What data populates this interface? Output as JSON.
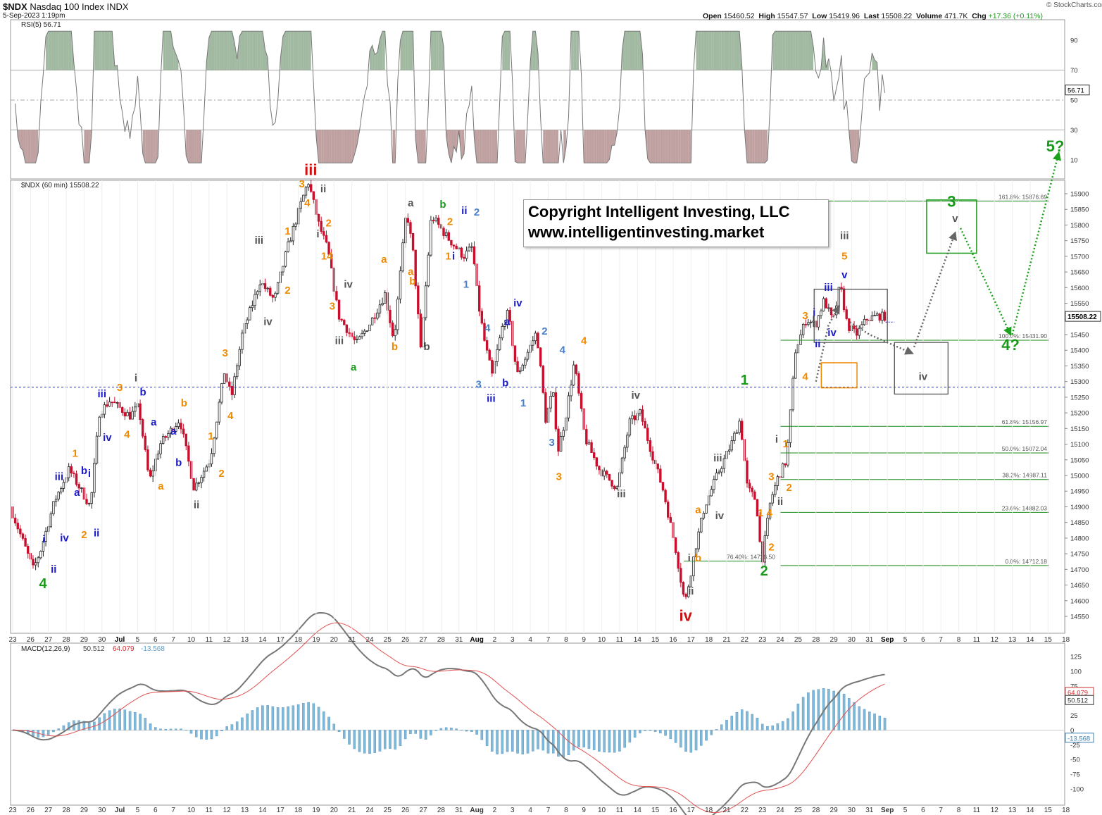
{
  "header": {
    "symbol": "$NDX",
    "name": "Nasdaq 100 Index",
    "exchange": "INDX",
    "datetime": "5-Sep-2023 1:19pm",
    "watermark": "© StockCharts.com",
    "open_label": "Open",
    "open": "15460.52",
    "high_label": "High",
    "high": "15547.57",
    "low_label": "Low",
    "low": "15419.96",
    "last_label": "Last",
    "last": "15508.22",
    "volume_label": "Volume",
    "volume": "471.7K",
    "chg_label": "Chg",
    "chg": "+17.36 (+0.11%)",
    "chg_color": "#1a9a1a"
  },
  "copyright": {
    "line1": "Copyright Intelligent Investing, LLC",
    "line2": "www.intelligentinvesting.market"
  },
  "chart_data": [
    {
      "type": "line",
      "panel": "RSI",
      "legend": "RSI(5) 56.71",
      "last_value": "56.71",
      "ylim": [
        0,
        100
      ],
      "yticks": [
        "90",
        "70",
        "50",
        "30",
        "10"
      ],
      "overbought": 70,
      "oversold": 30
    },
    {
      "type": "candlestick",
      "panel": "price",
      "legend": "$NDX (60 min) 15508.22",
      "last_value": "15508.22",
      "ylim": [
        14530,
        15960
      ],
      "yticks": [
        "15900",
        "15850",
        "15800",
        "15750",
        "15700",
        "15650",
        "15600",
        "15550",
        "15500",
        "15450",
        "15400",
        "15350",
        "15300",
        "15250",
        "15200",
        "15150",
        "15100",
        "15050",
        "15000",
        "14950",
        "14900",
        "14850",
        "14800",
        "14750",
        "14700",
        "14650",
        "14600",
        "14550"
      ],
      "x_dates": [
        "23",
        "26",
        "27",
        "28",
        "29",
        "30",
        "Jul",
        "5",
        "6",
        "7",
        "10",
        "11",
        "12",
        "13",
        "14",
        "17",
        "18",
        "19",
        "20",
        "21",
        "24",
        "25",
        "26",
        "27",
        "28",
        "31",
        "Aug",
        "2",
        "3",
        "4",
        "7",
        "8",
        "9",
        "10",
        "11",
        "14",
        "15",
        "16",
        "17",
        "18",
        "21",
        "22",
        "23",
        "24",
        "25",
        "28",
        "29",
        "30",
        "31",
        "Sep",
        "5",
        "6",
        "7",
        "8",
        "11",
        "12",
        "13",
        "14",
        "15",
        "18"
      ],
      "key_points": [
        {
          "date": "Jun 27",
          "value": 14700,
          "label": "4"
        },
        {
          "date": "Jul 19",
          "value": 15940,
          "label": "iii"
        },
        {
          "date": "Aug 18",
          "value": 14560,
          "label": "iv"
        },
        {
          "date": "Aug 24",
          "value": 15280,
          "label": "1"
        },
        {
          "date": "Aug 25",
          "value": 14712,
          "label": "2"
        },
        {
          "date": "Aug 31",
          "value": 15560,
          "label": "iii"
        },
        {
          "date": "Sep 5",
          "value": 15508.22,
          "label": "last"
        }
      ],
      "reference_level": 15282,
      "fib_levels": [
        {
          "label": "161.8%: 15876.69",
          "value": 15876.69
        },
        {
          "label": "100.0%: 15431.90",
          "value": 15431.9
        },
        {
          "label": "61.8%: 15156.97",
          "value": 15156.97
        },
        {
          "label": "50.0%: 15072.04",
          "value": 15072.04
        },
        {
          "label": "38.2%: 14987.11",
          "value": 14987.11
        },
        {
          "label": "23.6%: 14882.03",
          "value": 14882.03
        },
        {
          "label": "0.0%: 14712.18",
          "value": 14712.18
        },
        {
          "label": "76.40%: 14726.50",
          "value": 14726.5
        }
      ],
      "projection": [
        {
          "label": "iv",
          "date": "Sep 7",
          "value": 15390
        },
        {
          "label": "v",
          "date": "Sep 11",
          "value": 15770
        },
        {
          "label": "3",
          "date": "Sep 11",
          "value": 15790
        },
        {
          "label": "4?",
          "date": "Sep 14",
          "value": 15460
        },
        {
          "label": "5?",
          "date": "Sep 15",
          "value": 16050
        }
      ]
    },
    {
      "type": "line",
      "panel": "MACD",
      "legend": {
        "name": "MACD(12,26,9)",
        "macd": "50.512",
        "signal": "64.079",
        "hist": "-13.568"
      },
      "ylim": [
        -110,
        140
      ],
      "yticks": [
        "125",
        "100",
        "75",
        "50",
        "25",
        "0",
        "-25",
        "-50",
        "-75",
        "-100"
      ],
      "last_values": {
        "signal": "64.079",
        "macd": "50.512",
        "hist": "-13.568"
      },
      "series": [
        {
          "name": "MACD",
          "color": "#777777"
        },
        {
          "name": "signal",
          "color": "#e05050"
        },
        {
          "name": "histogram",
          "color": "#7fb8d8"
        }
      ]
    }
  ],
  "wave_labels": [
    {
      "t": "4",
      "d": 1.7,
      "v": 14640,
      "c": "green",
      "s": 20
    },
    {
      "t": "i",
      "d": 1.75,
      "v": 14785,
      "c": "blue"
    },
    {
      "t": "ii",
      "d": 2.3,
      "v": 14690,
      "c": "blue"
    },
    {
      "t": "iii",
      "d": 2.6,
      "v": 14985,
      "c": "blue"
    },
    {
      "t": "iv",
      "d": 2.9,
      "v": 14790,
      "c": "blue"
    },
    {
      "t": "a",
      "d": 3.6,
      "v": 14935,
      "c": "blue"
    },
    {
      "t": "1",
      "d": 3.5,
      "v": 15060,
      "c": "orange"
    },
    {
      "t": "b",
      "d": 4.0,
      "v": 15005,
      "c": "blue"
    },
    {
      "t": "i",
      "d": 4.3,
      "v": 14995,
      "c": "blue"
    },
    {
      "t": "2",
      "d": 4.0,
      "v": 14800,
      "c": "orange"
    },
    {
      "t": "ii",
      "d": 4.7,
      "v": 14805,
      "c": "blue"
    },
    {
      "t": "iii",
      "d": 5.0,
      "v": 15250,
      "c": "blue"
    },
    {
      "t": "iv",
      "d": 5.3,
      "v": 15110,
      "c": "blue"
    },
    {
      "t": "3",
      "d": 6.0,
      "v": 15270,
      "c": "orange"
    },
    {
      "t": "4",
      "d": 6.4,
      "v": 15120,
      "c": "orange"
    },
    {
      "t": "i",
      "d": 6.9,
      "v": 15300,
      "c": "gray"
    },
    {
      "t": "b",
      "d": 7.3,
      "v": 15255,
      "c": "blue"
    },
    {
      "t": "a",
      "d": 7.9,
      "v": 15160,
      "c": "blue"
    },
    {
      "t": "a",
      "d": 8.3,
      "v": 14955,
      "c": "orange"
    },
    {
      "t": "b",
      "d": 9.3,
      "v": 15030,
      "c": "blue"
    },
    {
      "t": "a",
      "d": 9.0,
      "v": 15130,
      "c": "blue"
    },
    {
      "t": "b",
      "d": 9.6,
      "v": 15220,
      "c": "orange"
    },
    {
      "t": "ii",
      "d": 10.3,
      "v": 14895,
      "c": "gray"
    },
    {
      "t": "1",
      "d": 11.1,
      "v": 15115,
      "c": "orange"
    },
    {
      "t": "2",
      "d": 11.7,
      "v": 14995,
      "c": "orange"
    },
    {
      "t": "3",
      "d": 11.9,
      "v": 15380,
      "c": "orange"
    },
    {
      "t": "4",
      "d": 12.2,
      "v": 15180,
      "c": "orange"
    },
    {
      "t": "iii",
      "d": 13.8,
      "v": 15740,
      "c": "gray"
    },
    {
      "t": "iv",
      "d": 14.3,
      "v": 15480,
      "c": "gray"
    },
    {
      "t": "1",
      "d": 15.4,
      "v": 15770,
      "c": "orange"
    },
    {
      "t": "2",
      "d": 15.4,
      "v": 15580,
      "c": "orange"
    },
    {
      "t": "3",
      "d": 16.2,
      "v": 15920,
      "c": "orange"
    },
    {
      "t": "4",
      "d": 16.5,
      "v": 15860,
      "c": "orange"
    },
    {
      "t": "iii",
      "d": 16.7,
      "v": 15960,
      "c": "red",
      "s": 22
    },
    {
      "t": "ii",
      "d": 17.4,
      "v": 15905,
      "c": "gray"
    },
    {
      "t": "i",
      "d": 17.1,
      "v": 15760,
      "c": "gray"
    },
    {
      "t": "2",
      "d": 17.7,
      "v": 15795,
      "c": "orange"
    },
    {
      "t": "14",
      "d": 17.6,
      "v": 15690,
      "c": "orange"
    },
    {
      "t": "iv",
      "d": 18.8,
      "v": 15600,
      "c": "gray"
    },
    {
      "t": "3",
      "d": 17.9,
      "v": 15530,
      "c": "orange"
    },
    {
      "t": "iii",
      "d": 18.3,
      "v": 15420,
      "c": "gray"
    },
    {
      "t": "a",
      "d": 19.1,
      "v": 15335,
      "c": "green"
    },
    {
      "t": "a",
      "d": 20.8,
      "v": 15680,
      "c": "orange"
    },
    {
      "t": "b",
      "d": 21.4,
      "v": 15400,
      "c": "orange"
    },
    {
      "t": "a",
      "d": 22.3,
      "v": 15860,
      "c": "gray"
    },
    {
      "t": "b",
      "d": 22.4,
      "v": 15610,
      "c": "orange"
    },
    {
      "t": "a",
      "d": 22.3,
      "v": 15640,
      "c": "orange"
    },
    {
      "t": "b",
      "d": 23.2,
      "v": 15400,
      "c": "gray"
    },
    {
      "t": "b",
      "d": 24.1,
      "v": 15855,
      "c": "green"
    },
    {
      "t": "2",
      "d": 24.5,
      "v": 15800,
      "c": "orange"
    },
    {
      "t": "1",
      "d": 24.4,
      "v": 15690,
      "c": "orange"
    },
    {
      "t": "i",
      "d": 24.7,
      "v": 15690,
      "c": "blue"
    },
    {
      "t": "ii",
      "d": 25.3,
      "v": 15835,
      "c": "blue"
    },
    {
      "t": "1",
      "d": 25.4,
      "v": 15600,
      "c": "steel"
    },
    {
      "t": "2",
      "d": 26.0,
      "v": 15830,
      "c": "steel"
    },
    {
      "t": "iv",
      "d": 28.3,
      "v": 15540,
      "c": "blue"
    },
    {
      "t": "a",
      "d": 27.7,
      "v": 15480,
      "c": "blue"
    },
    {
      "t": "4",
      "d": 26.6,
      "v": 15460,
      "c": "steel"
    },
    {
      "t": "3",
      "d": 26.1,
      "v": 15280,
      "c": "steel"
    },
    {
      "t": "iii",
      "d": 26.8,
      "v": 15235,
      "c": "blue"
    },
    {
      "t": "b",
      "d": 27.6,
      "v": 15285,
      "c": "blue"
    },
    {
      "t": "1",
      "d": 28.6,
      "v": 15220,
      "c": "steel"
    },
    {
      "t": "2",
      "d": 29.8,
      "v": 15450,
      "c": "steel"
    },
    {
      "t": "4",
      "d": 30.8,
      "v": 15390,
      "c": "steel"
    },
    {
      "t": "4",
      "d": 32.0,
      "v": 15420,
      "c": "orange"
    },
    {
      "t": "3",
      "d": 30.2,
      "v": 15095,
      "c": "steel"
    },
    {
      "t": "3",
      "d": 30.6,
      "v": 14985,
      "c": "orange"
    },
    {
      "t": "iv",
      "d": 34.9,
      "v": 15245,
      "c": "gray"
    },
    {
      "t": "iii",
      "d": 34.1,
      "v": 14930,
      "c": "gray"
    },
    {
      "t": "iv",
      "d": 37.7,
      "v": 14535,
      "c": "red",
      "s": 22
    },
    {
      "t": "i",
      "d": 37.9,
      "v": 14725,
      "c": "gray"
    },
    {
      "t": "ii",
      "d": 38.0,
      "v": 14620,
      "c": "gray"
    },
    {
      "t": "b",
      "d": 38.4,
      "v": 14725,
      "c": "orange"
    },
    {
      "t": "a",
      "d": 38.4,
      "v": 14880,
      "c": "orange"
    },
    {
      "t": "iii",
      "d": 39.5,
      "v": 15045,
      "c": "gray"
    },
    {
      "t": "iv",
      "d": 39.6,
      "v": 14860,
      "c": "gray"
    },
    {
      "t": "1",
      "d": 41.0,
      "v": 15290,
      "c": "green",
      "s": 20
    },
    {
      "t": "2",
      "d": 42.1,
      "v": 14680,
      "c": "green",
      "s": 20
    },
    {
      "t": "1",
      "d": 41.9,
      "v": 14870,
      "c": "orange"
    },
    {
      "t": "4",
      "d": 42.4,
      "v": 14870,
      "c": "orange"
    },
    {
      "t": "2",
      "d": 42.5,
      "v": 14760,
      "c": "orange"
    },
    {
      "t": "3",
      "d": 42.5,
      "v": 14985,
      "c": "orange"
    },
    {
      "t": "i",
      "d": 42.8,
      "v": 15105,
      "c": "gray"
    },
    {
      "t": "1",
      "d": 43.3,
      "v": 15090,
      "c": "orange"
    },
    {
      "t": "ii",
      "d": 43.0,
      "v": 14905,
      "c": "gray"
    },
    {
      "t": "2",
      "d": 43.5,
      "v": 14950,
      "c": "orange"
    },
    {
      "t": "3",
      "d": 44.4,
      "v": 15500,
      "c": "orange"
    },
    {
      "t": "4",
      "d": 44.4,
      "v": 15305,
      "c": "orange"
    },
    {
      "t": "i",
      "d": 44.9,
      "v": 15510,
      "c": "blue"
    },
    {
      "t": "ii",
      "d": 45.1,
      "v": 15410,
      "c": "blue"
    },
    {
      "t": "iii",
      "d": 45.7,
      "v": 15590,
      "c": "blue"
    },
    {
      "t": "iv",
      "d": 45.9,
      "v": 15445,
      "c": "blue"
    },
    {
      "t": "v",
      "d": 46.6,
      "v": 15630,
      "c": "blue"
    },
    {
      "t": "5",
      "d": 46.6,
      "v": 15690,
      "c": "orange"
    },
    {
      "t": "iii",
      "d": 46.6,
      "v": 15755,
      "c": "gray"
    }
  ]
}
